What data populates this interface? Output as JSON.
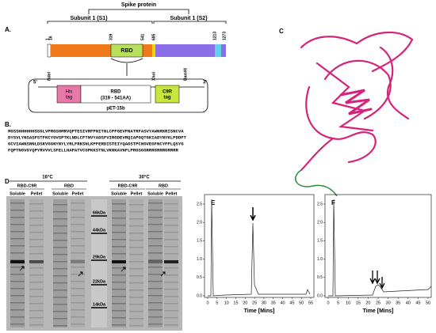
{
  "panel_labels": [
    "A.",
    "B.",
    "C",
    "D",
    "E",
    "F"
  ],
  "panel_a": {
    "spike": "Spike protein",
    "s1": "Subunit 1 (S1)",
    "s2": "Subunit 1 (S2)",
    "positions": [
      1,
      16,
      319,
      541,
      685,
      1213,
      1273
    ],
    "rbd": "RBD",
    "five": "5'",
    "three": "3'",
    "ndei": "NdeI",
    "xhoi": "XhoI",
    "bamhi": "BamHI",
    "his_tag": [
      "His",
      "tag"
    ],
    "rbd_range": [
      "RBD",
      "(319 - 541AA)"
    ],
    "c9r_tag": [
      "C9R",
      "tag"
    ],
    "vector": "pET-15b"
  },
  "panel_b": {
    "sequence": [
      "MGSSHHHHHHSSGLVPRGSHMRVQPTESIVRFPNITNLCPFGEVFNATRFASVYAWNRKRISNCVA",
      "DYSVLYNSASFSTFKCYGVSPTKLNDLCFTNVYADSFVIRGDEVRQIAPGQTGKIADYNYKLPDDFT",
      "GCVIAWNSNNLDSKVGGNYNYLYRLFRKSNLKPFERDISTEIYQAGSTPCNGVEGFNCYFPLQSYG",
      "FQPTNGVGYQPYRVVVLSFELLHAPATVCGPKKSTNLVKNKAVNFLPRGSGGRRRGRRRGRRRR"
    ]
  },
  "panel_d": {
    "temps": [
      "16°C",
      "30°C"
    ],
    "groups": [
      "RBD-C9R",
      "RBD",
      "RBD-C9R",
      "RBD"
    ],
    "lanes": [
      "Soluble",
      "Pellet",
      "Soluble",
      "Pellet",
      "Soluble",
      "Pellet",
      "Soluble",
      "Pellet"
    ],
    "markers": [
      "66kDa",
      "44kDa",
      "29kDa",
      "22kDa",
      "14kDa"
    ]
  },
  "panel_e": {
    "xlabel": "Time [Mins]",
    "xticks": [
      0,
      5,
      10,
      15,
      20,
      25,
      30,
      35,
      40,
      45,
      50,
      55
    ],
    "yticks": [
      {
        "value": 0,
        "label": "0.0"
      },
      {
        "value": 0.5,
        "label": "0.5"
      },
      {
        "value": 1,
        "label": "1.0"
      },
      {
        "value": 1.5,
        "label": "1.5"
      },
      {
        "value": 2,
        "label": "2.0"
      },
      {
        "value": 2.5,
        "label": "2.5"
      }
    ]
  },
  "panel_f": {
    "xlabel": "Time [Mins]",
    "xticks": [
      0,
      5,
      10,
      15,
      20,
      25,
      30,
      35,
      40,
      45,
      50
    ],
    "yticks": [
      {
        "value": 0,
        "label": "0.0"
      },
      {
        "value": 0.5,
        "label": "0.5"
      },
      {
        "value": 1,
        "label": "1.0"
      },
      {
        "value": 1.5,
        "label": "1.5"
      },
      {
        "value": 2,
        "label": "2.0"
      },
      {
        "value": 2.5,
        "label": "2.5"
      }
    ]
  }
}
